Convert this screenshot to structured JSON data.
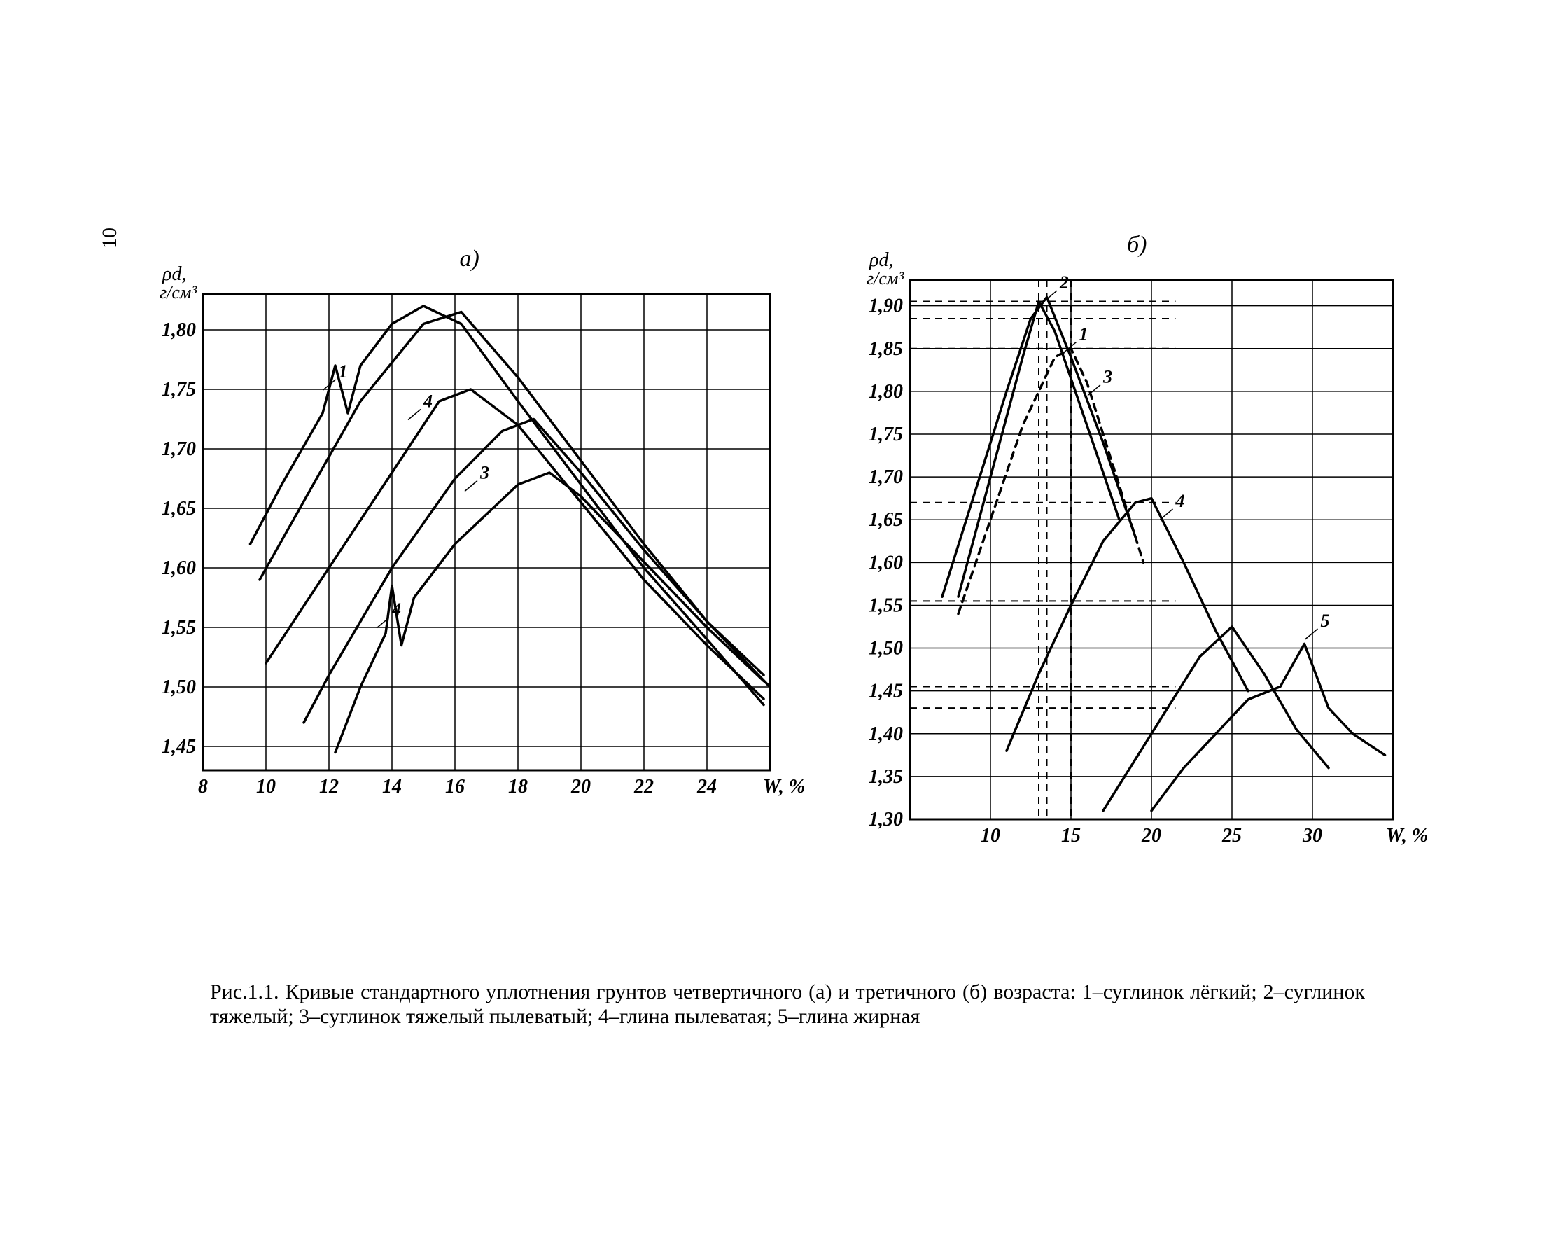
{
  "page_number": "10",
  "caption_html": "Рис.1.1. Кривые стандартного уплотнения грунтов четвертичного (а) и третичного (б) возраста: 1–суглинок лёгкий; 2–суглинок тяжелый; 3–суглинок тяжелый пылеватый; 4–глина пылеватая; 5–глина жирная",
  "chart_a": {
    "title": "а)",
    "title_fontsize": 34,
    "y_label": "ρd, г/см³",
    "x_label": "W, %",
    "label_fontsize": 28,
    "tick_fontsize": 28,
    "xlim": [
      8,
      26
    ],
    "ylim": [
      1.43,
      1.83
    ],
    "x_ticks": [
      8,
      10,
      12,
      14,
      16,
      18,
      20,
      22,
      24
    ],
    "y_ticks": [
      1.45,
      1.5,
      1.55,
      1.6,
      1.65,
      1.7,
      1.75,
      1.8
    ],
    "grid_color": "#000000",
    "grid_width": 1.5,
    "axis_width": 3,
    "line_width": 3.5,
    "line_color": "#000000",
    "background_color": "#ffffff",
    "series": [
      {
        "name": "1",
        "label_at": [
          12.3,
          1.76
        ],
        "points": [
          [
            9.5,
            1.62
          ],
          [
            10.5,
            1.67
          ],
          [
            11.8,
            1.73
          ],
          [
            12.2,
            1.77
          ],
          [
            12.6,
            1.73
          ],
          [
            13.0,
            1.77
          ],
          [
            14.0,
            1.805
          ],
          [
            15.0,
            1.82
          ],
          [
            16.2,
            1.805
          ],
          [
            18.0,
            1.74
          ],
          [
            20.0,
            1.67
          ],
          [
            22.0,
            1.6
          ],
          [
            24.0,
            1.54
          ],
          [
            25.8,
            1.485
          ]
        ]
      },
      {
        "name": "2",
        "points": [
          [
            9.8,
            1.59
          ],
          [
            11.5,
            1.67
          ],
          [
            13.0,
            1.74
          ],
          [
            15.0,
            1.805
          ],
          [
            16.2,
            1.815
          ],
          [
            18.0,
            1.76
          ],
          [
            20.0,
            1.69
          ],
          [
            22.0,
            1.62
          ],
          [
            24.0,
            1.555
          ],
          [
            26.0,
            1.5
          ]
        ]
      },
      {
        "name": "4",
        "label_at": [
          15.0,
          1.735
        ],
        "points": [
          [
            10.0,
            1.52
          ],
          [
            12.0,
            1.6
          ],
          [
            14.0,
            1.68
          ],
          [
            15.5,
            1.74
          ],
          [
            16.5,
            1.75
          ],
          [
            18.0,
            1.72
          ],
          [
            20.0,
            1.655
          ],
          [
            22.0,
            1.59
          ],
          [
            24.0,
            1.535
          ],
          [
            25.8,
            1.49
          ]
        ]
      },
      {
        "name": "3",
        "label_at": [
          16.8,
          1.675
        ],
        "points": [
          [
            11.2,
            1.47
          ],
          [
            12.0,
            1.51
          ],
          [
            14.0,
            1.6
          ],
          [
            16.0,
            1.675
          ],
          [
            17.5,
            1.715
          ],
          [
            18.5,
            1.725
          ],
          [
            20.0,
            1.68
          ],
          [
            22.0,
            1.615
          ],
          [
            24.0,
            1.555
          ],
          [
            25.8,
            1.51
          ]
        ]
      },
      {
        "name": "4b",
        "label_at": [
          14.0,
          1.56
        ],
        "points": [
          [
            12.2,
            1.445
          ],
          [
            13.0,
            1.5
          ],
          [
            13.8,
            1.545
          ],
          [
            14.0,
            1.585
          ],
          [
            14.3,
            1.535
          ],
          [
            14.7,
            1.575
          ],
          [
            16.0,
            1.62
          ],
          [
            18.0,
            1.67
          ],
          [
            19.0,
            1.68
          ],
          [
            20.0,
            1.66
          ],
          [
            22.0,
            1.605
          ],
          [
            24.0,
            1.55
          ],
          [
            25.8,
            1.505
          ]
        ]
      }
    ]
  },
  "chart_b": {
    "title": "б)",
    "title_fontsize": 34,
    "y_label": "ρd, г/см³",
    "x_label": "W, %",
    "label_fontsize": 28,
    "tick_fontsize": 28,
    "xlim": [
      5,
      35
    ],
    "ylim": [
      1.3,
      1.93
    ],
    "x_ticks": [
      10,
      15,
      20,
      25,
      30
    ],
    "y_ticks": [
      1.3,
      1.35,
      1.4,
      1.45,
      1.5,
      1.55,
      1.6,
      1.65,
      1.7,
      1.75,
      1.8,
      1.85,
      1.9
    ],
    "grid_color": "#000000",
    "grid_width": 1.5,
    "axis_width": 3,
    "line_width": 3.5,
    "line_color": "#000000",
    "dash_pattern": "10,8",
    "background_color": "#ffffff",
    "series": [
      {
        "name": "1",
        "label_at": [
          15.5,
          1.86
        ],
        "points": [
          [
            7.0,
            1.56
          ],
          [
            9.0,
            1.68
          ],
          [
            11.0,
            1.8
          ],
          [
            12.5,
            1.885
          ],
          [
            13.5,
            1.91
          ],
          [
            15.0,
            1.84
          ],
          [
            17.0,
            1.74
          ],
          [
            19.0,
            1.63
          ]
        ]
      },
      {
        "name": "2",
        "label_at": [
          14.3,
          1.92
        ],
        "points": [
          [
            8.0,
            1.56
          ],
          [
            10.0,
            1.7
          ],
          [
            12.0,
            1.84
          ],
          [
            13.0,
            1.905
          ],
          [
            14.0,
            1.87
          ],
          [
            16.0,
            1.76
          ],
          [
            18.0,
            1.65
          ]
        ]
      },
      {
        "name": "3",
        "label_at": [
          17.0,
          1.81
        ],
        "dashed": true,
        "points": [
          [
            8.0,
            1.54
          ],
          [
            10.0,
            1.65
          ],
          [
            12.0,
            1.76
          ],
          [
            14.0,
            1.84
          ],
          [
            15.0,
            1.85
          ],
          [
            16.0,
            1.81
          ],
          [
            18.0,
            1.69
          ],
          [
            19.5,
            1.6
          ]
        ]
      },
      {
        "name": "4",
        "label_at": [
          21.5,
          1.665
        ],
        "points": [
          [
            11.0,
            1.38
          ],
          [
            13.0,
            1.47
          ],
          [
            15.0,
            1.55
          ],
          [
            17.0,
            1.625
          ],
          [
            19.0,
            1.67
          ],
          [
            20.0,
            1.675
          ],
          [
            22.0,
            1.6
          ],
          [
            24.0,
            1.52
          ],
          [
            26.0,
            1.45
          ]
        ]
      },
      {
        "name": "5",
        "label_at": [
          30.5,
          1.525
        ],
        "points": [
          [
            17.0,
            1.31
          ],
          [
            19.0,
            1.37
          ],
          [
            21.0,
            1.43
          ],
          [
            23.0,
            1.49
          ],
          [
            25.0,
            1.525
          ],
          [
            27.0,
            1.47
          ],
          [
            29.0,
            1.405
          ],
          [
            31.0,
            1.36
          ]
        ]
      },
      {
        "name": "5b",
        "points": [
          [
            20.0,
            1.31
          ],
          [
            22.0,
            1.36
          ],
          [
            24.0,
            1.4
          ],
          [
            26.0,
            1.44
          ],
          [
            28.0,
            1.455
          ],
          [
            29.5,
            1.505
          ],
          [
            31.0,
            1.43
          ],
          [
            32.5,
            1.4
          ],
          [
            34.5,
            1.375
          ]
        ]
      }
    ],
    "dashed_guides_h": [
      1.905,
      1.885,
      1.85,
      1.67,
      1.555,
      1.455,
      1.43
    ],
    "dashed_guides_v": [
      13.0,
      13.5,
      15.0
    ]
  }
}
